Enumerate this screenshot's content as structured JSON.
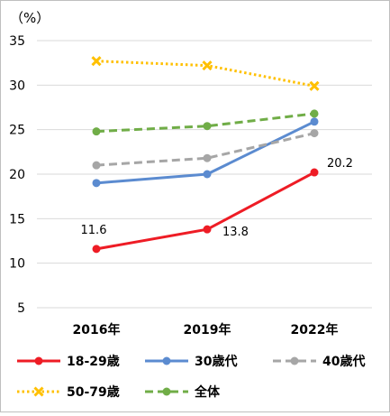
{
  "chart_data": {
    "type": "line",
    "y_unit_label": "（%）",
    "categories": [
      "2016年",
      "2019年",
      "2022年"
    ],
    "ylim": [
      5,
      35
    ],
    "yticks": [
      5,
      10,
      15,
      20,
      25,
      30,
      35
    ],
    "grid": true,
    "legend_position": "bottom",
    "series": [
      {
        "name": "18-29歳",
        "values": [
          11.6,
          13.8,
          20.2
        ],
        "color": "#ee1c25",
        "dash": "solid",
        "marker": "circle",
        "labels": [
          "11.6",
          "13.8",
          "20.2"
        ]
      },
      {
        "name": "30歳代",
        "values": [
          19.0,
          20.0,
          25.9
        ],
        "color": "#5b8bd0",
        "dash": "solid",
        "marker": "circle"
      },
      {
        "name": "40歳代",
        "values": [
          21.0,
          21.8,
          24.6
        ],
        "color": "#a6a6a6",
        "dash": "dash",
        "marker": "circle"
      },
      {
        "name": "50-79歳",
        "values": [
          32.7,
          32.2,
          29.9
        ],
        "color": "#ffc000",
        "dash": "dot",
        "marker": "x"
      },
      {
        "name": "全体",
        "values": [
          24.8,
          25.4,
          26.8
        ],
        "color": "#70ad47",
        "dash": "dash",
        "marker": "circle"
      }
    ]
  }
}
